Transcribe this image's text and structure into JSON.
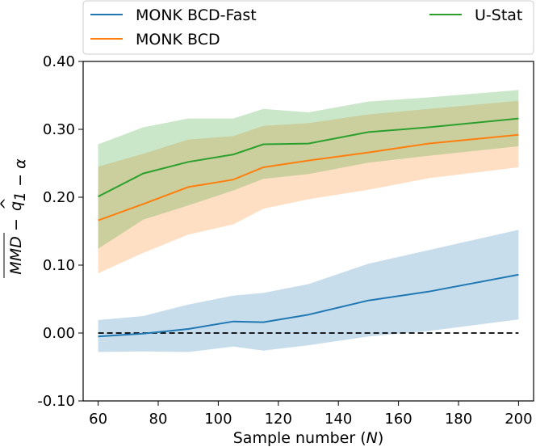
{
  "chart_data": {
    "type": "line",
    "x": [
      60,
      75,
      90,
      105,
      115,
      130,
      150,
      170,
      200
    ],
    "xlim": [
      55,
      205
    ],
    "ylim": [
      -0.1,
      0.4
    ],
    "xticks": [
      60,
      80,
      100,
      120,
      140,
      160,
      180,
      200
    ],
    "yticks": [
      -0.1,
      0.0,
      0.1,
      0.2,
      0.3,
      0.4
    ],
    "ytick_labels": [
      "-0.10",
      "0.00",
      "0.10",
      "0.20",
      "0.30",
      "0.40"
    ],
    "xlabel_prefix": "Sample number (",
    "xlabel_var": "N",
    "xlabel_suffix": ")",
    "ylabel_main": "MMD",
    "ylabel_minus": " − ",
    "ylabel_q": "q",
    "ylabel_hat": "^",
    "ylabel_sub": "1 − α",
    "legend_location": "top",
    "reference_line": {
      "y": 0.0,
      "style": "dashed",
      "color": "#000000"
    },
    "series": [
      {
        "name": "MONK BCD-Fast",
        "color": "#1f77b4",
        "values": [
          -0.005,
          -0.001,
          0.006,
          0.017,
          0.016,
          0.027,
          0.048,
          0.061,
          0.086
        ],
        "lower": [
          -0.028,
          -0.027,
          -0.028,
          -0.02,
          -0.026,
          -0.018,
          -0.005,
          0.003,
          0.02
        ],
        "upper": [
          0.019,
          0.025,
          0.042,
          0.055,
          0.059,
          0.072,
          0.102,
          0.122,
          0.152
        ]
      },
      {
        "name": "MONK BCD",
        "color": "#ff7f0e",
        "values": [
          0.166,
          0.19,
          0.215,
          0.226,
          0.244,
          0.254,
          0.266,
          0.279,
          0.292
        ],
        "lower": [
          0.088,
          0.118,
          0.145,
          0.16,
          0.183,
          0.197,
          0.211,
          0.228,
          0.244
        ],
        "upper": [
          0.245,
          0.264,
          0.285,
          0.29,
          0.305,
          0.309,
          0.322,
          0.33,
          0.342
        ]
      },
      {
        "name": "U-Stat",
        "color": "#2ca02c",
        "values": [
          0.201,
          0.235,
          0.252,
          0.263,
          0.278,
          0.279,
          0.296,
          0.303,
          0.316
        ],
        "lower": [
          0.124,
          0.167,
          0.188,
          0.21,
          0.227,
          0.234,
          0.251,
          0.261,
          0.275
        ],
        "upper": [
          0.278,
          0.303,
          0.316,
          0.316,
          0.33,
          0.325,
          0.341,
          0.347,
          0.358
        ]
      }
    ]
  }
}
